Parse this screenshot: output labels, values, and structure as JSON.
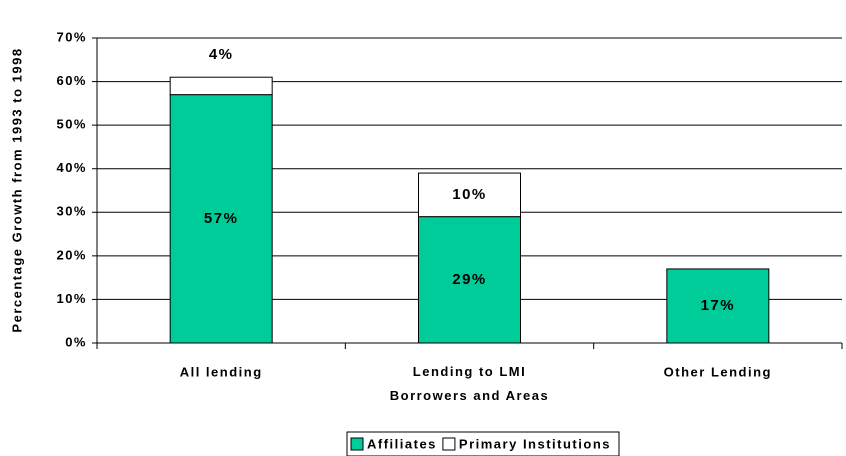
{
  "chart_data": {
    "type": "stacked_bar",
    "y_label": "Percentage Growth from 1993 to 1998",
    "categories": [
      "All lending",
      "Lending to LMI Borrowers and Areas",
      "Other Lending"
    ],
    "series": [
      {
        "name": "Affiliates",
        "color": "#00cc99",
        "values": [
          57,
          29,
          17
        ],
        "value_labels": [
          "57%",
          "29%",
          "17%"
        ]
      },
      {
        "name": "Primary Institutions",
        "color": "#ffffff",
        "values": [
          4,
          10,
          null
        ],
        "value_labels": [
          "4%",
          "10%",
          null
        ]
      }
    ],
    "ylim": [
      0,
      70
    ],
    "yticks": [
      {
        "value": 0,
        "label": "0%"
      },
      {
        "value": 10,
        "label": "10%"
      },
      {
        "value": 20,
        "label": "20%"
      },
      {
        "value": 30,
        "label": "30%"
      },
      {
        "value": 40,
        "label": "40%"
      },
      {
        "value": 50,
        "label": "50%"
      },
      {
        "value": 60,
        "label": "60%"
      },
      {
        "value": 70,
        "label": "70%"
      }
    ],
    "grid": true,
    "legend": "bottom"
  }
}
